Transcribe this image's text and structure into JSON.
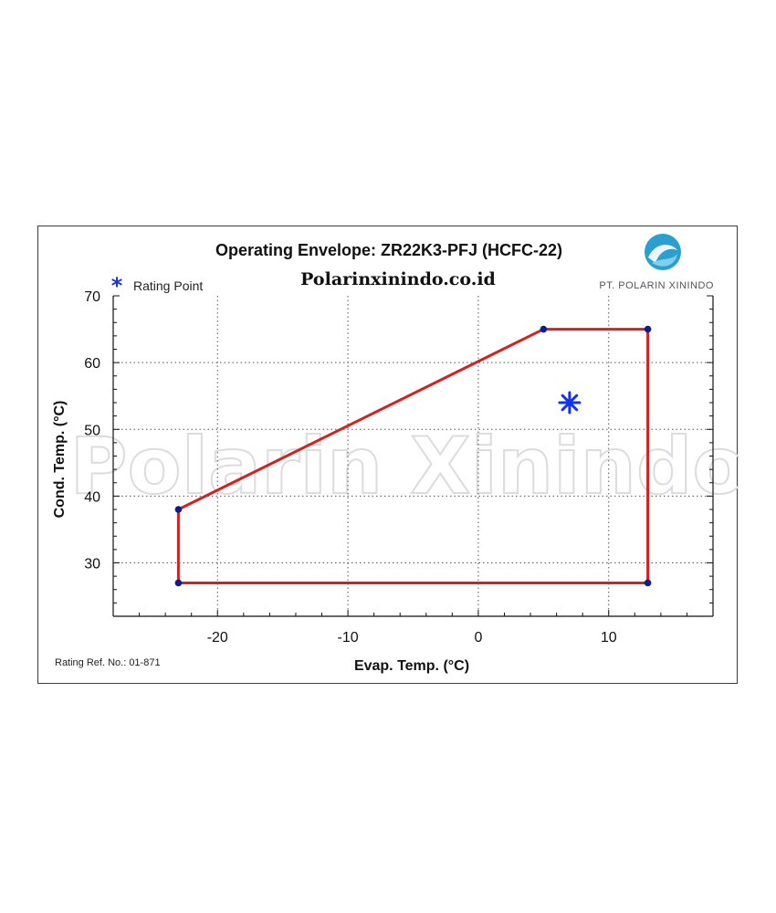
{
  "chart_data": {
    "type": "line",
    "title": "Operating Envelope: ZR22K3-PFJ (HCFC-22)",
    "subtitle": "Polarinxinindo.co.id",
    "xlabel": "Evap. Temp. (°C)",
    "ylabel": "Cond. Temp. (°C)",
    "xlim": [
      -28,
      18
    ],
    "ylim": [
      22,
      70
    ],
    "x_ticks": [
      -20,
      -10,
      0,
      10
    ],
    "y_ticks": [
      30,
      40,
      50,
      60,
      70
    ],
    "grid": true,
    "legend_position": "top-left",
    "series": [
      {
        "color": "#d62020",
        "marker_color": "#0a1f8f",
        "closed": true,
        "points": [
          [
            -23,
            38
          ],
          [
            5,
            65
          ],
          [
            13,
            65
          ],
          [
            13,
            27
          ],
          [
            -23,
            27
          ]
        ]
      },
      {
        "name": "Rating Point",
        "color": "#1133ee",
        "marker": "asterisk",
        "points": [
          [
            7,
            54
          ]
        ]
      }
    ],
    "footnote": "Rating Ref. No.: 01-871"
  },
  "branding": {
    "company": "PT. POLARIN XININDO",
    "watermark": "Polarin Xinindo",
    "logo_color": "#2a9fd0"
  }
}
